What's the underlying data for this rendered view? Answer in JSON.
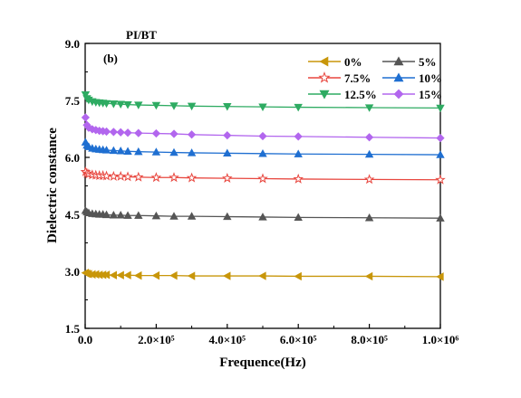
{
  "chart_data": {
    "type": "line",
    "title": "PI/BT",
    "panel_label": "(b)",
    "xlabel": "Frequence(Hz)",
    "ylabel": "Dielectric constance",
    "xlim": [
      0,
      1000000
    ],
    "ylim": [
      1.5,
      9.0
    ],
    "x_ticks": [
      0,
      200000,
      400000,
      600000,
      800000,
      1000000
    ],
    "x_tick_labels": [
      "0.0",
      "2.0×10⁵",
      "4.0×10⁵",
      "6.0×10⁵",
      "8.0×10⁵",
      "1.0×10⁶"
    ],
    "y_ticks": [
      1.5,
      3.0,
      4.5,
      6.0,
      7.5,
      9.0
    ],
    "y_tick_labels": [
      "1.5",
      "3.0",
      "4.5",
      "6.0",
      "7.5",
      "9.0"
    ],
    "legend_position": "top-right",
    "grid": false,
    "x": [
      1000,
      5000,
      10000,
      20000,
      30000,
      40000,
      50000,
      60000,
      80000,
      100000,
      120000,
      150000,
      200000,
      250000,
      300000,
      400000,
      500000,
      600000,
      800000,
      1000000
    ],
    "series": [
      {
        "name": "0%",
        "color": "#c8960a",
        "marker": "triangle-left",
        "values": [
          2.96,
          2.94,
          2.93,
          2.92,
          2.92,
          2.91,
          2.91,
          2.91,
          2.9,
          2.9,
          2.9,
          2.89,
          2.89,
          2.89,
          2.88,
          2.88,
          2.88,
          2.87,
          2.87,
          2.86
        ]
      },
      {
        "name": "5%",
        "color": "#555555",
        "marker": "triangle-up",
        "values": [
          4.6,
          4.56,
          4.54,
          4.52,
          4.51,
          4.5,
          4.5,
          4.49,
          4.48,
          4.48,
          4.47,
          4.47,
          4.46,
          4.45,
          4.45,
          4.44,
          4.43,
          4.42,
          4.41,
          4.4
        ]
      },
      {
        "name": "7.5%",
        "color": "#e8473f",
        "marker": "star",
        "values": [
          5.62,
          5.58,
          5.56,
          5.54,
          5.53,
          5.52,
          5.52,
          5.51,
          5.5,
          5.5,
          5.49,
          5.48,
          5.47,
          5.47,
          5.46,
          5.45,
          5.44,
          5.43,
          5.42,
          5.41
        ]
      },
      {
        "name": "10%",
        "color": "#1f6fd1",
        "marker": "triangle-up",
        "values": [
          6.4,
          6.32,
          6.28,
          6.24,
          6.22,
          6.21,
          6.2,
          6.19,
          6.18,
          6.17,
          6.16,
          6.15,
          6.14,
          6.13,
          6.12,
          6.11,
          6.1,
          6.09,
          6.08,
          6.07
        ]
      },
      {
        "name": "12.5%",
        "color": "#2eab62",
        "marker": "triangle-down",
        "values": [
          7.65,
          7.55,
          7.51,
          7.47,
          7.45,
          7.44,
          7.43,
          7.42,
          7.41,
          7.4,
          7.39,
          7.38,
          7.37,
          7.36,
          7.35,
          7.34,
          7.33,
          7.32,
          7.31,
          7.3
        ]
      },
      {
        "name": "15%",
        "color": "#b266ee",
        "marker": "diamond",
        "values": [
          7.05,
          6.85,
          6.78,
          6.74,
          6.72,
          6.7,
          6.69,
          6.68,
          6.67,
          6.66,
          6.65,
          6.64,
          6.63,
          6.62,
          6.6,
          6.58,
          6.56,
          6.55,
          6.53,
          6.51
        ]
      }
    ]
  }
}
